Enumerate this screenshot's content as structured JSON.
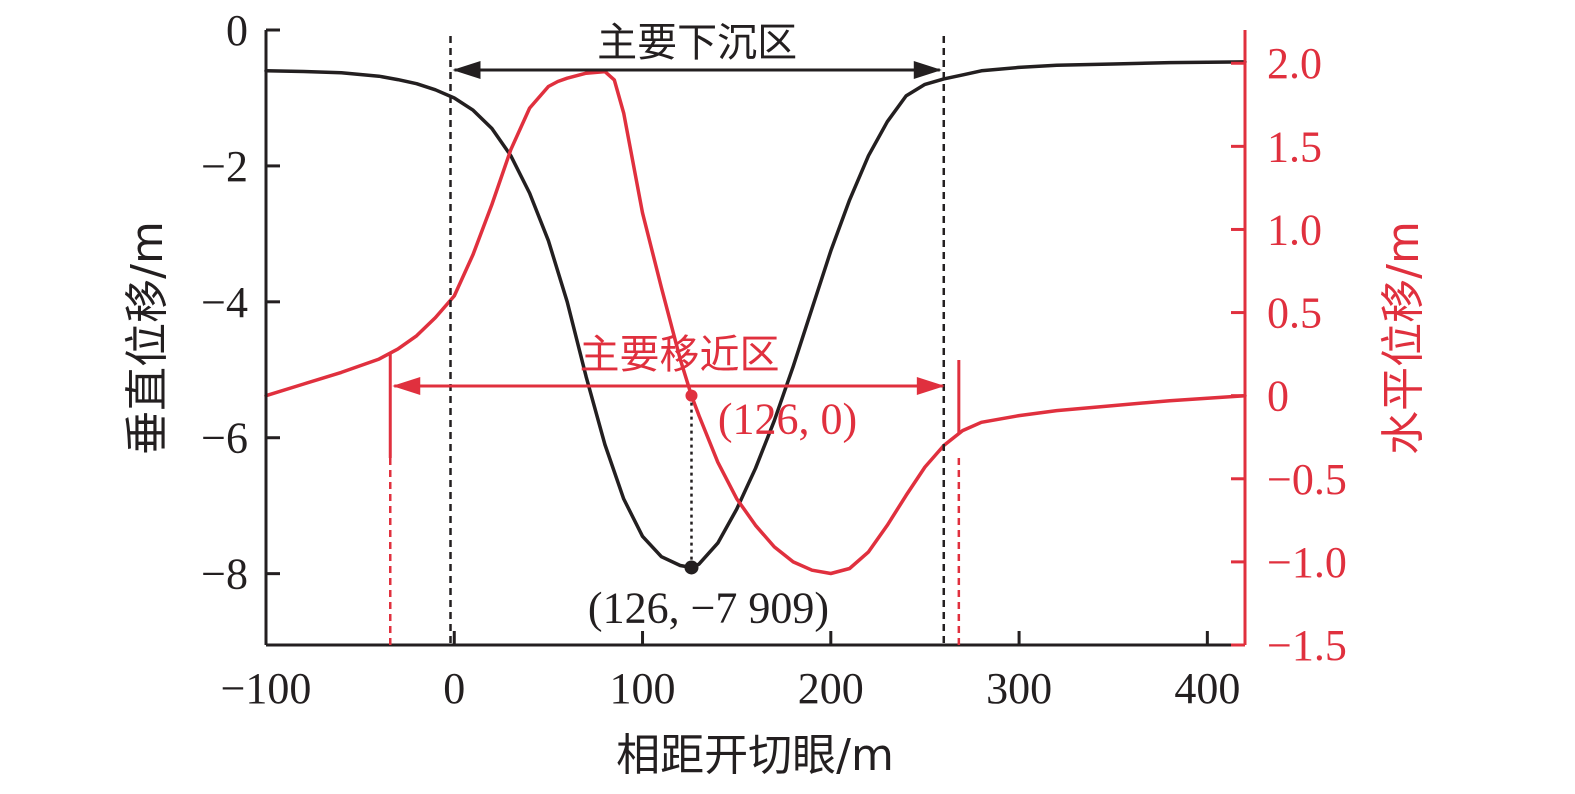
{
  "chart_data": {
    "type": "line",
    "xlabel": "相距开切眼/m",
    "ylabel_left": "垂直位移/m",
    "ylabel_right": "水平位移/m",
    "xlim": [
      -100,
      420
    ],
    "ylim_left": [
      -9.05,
      0
    ],
    "ylim_right": [
      -1.5,
      2.2
    ],
    "x_ticks": [
      -100,
      0,
      100,
      200,
      300,
      400
    ],
    "x_tick_labels": [
      "−100",
      "0",
      "100",
      "200",
      "300",
      "400"
    ],
    "y_left_ticks": [
      0,
      -2,
      -4,
      -6,
      -8
    ],
    "y_left_tick_labels": [
      "0",
      "−2",
      "−4",
      "−6",
      "−8"
    ],
    "y_right_ticks": [
      2.0,
      1.5,
      1.0,
      0.5,
      0,
      -0.5,
      -1.0,
      -1.5
    ],
    "y_right_tick_labels": [
      "2.0",
      "1.5",
      "1.0",
      "0.5",
      "0",
      "−0.5",
      "−1.0",
      "−1.5"
    ],
    "colors": {
      "vertical": "#231f20",
      "horizontal": "#e0303e"
    },
    "series": [
      {
        "axis": "left",
        "color": "#231f20",
        "x": [
          -100,
          -80,
          -60,
          -40,
          -30,
          -20,
          -10,
          0,
          10,
          20,
          30,
          40,
          50,
          60,
          70,
          80,
          90,
          100,
          110,
          120,
          126,
          130,
          140,
          150,
          160,
          170,
          180,
          190,
          200,
          210,
          220,
          230,
          240,
          250,
          260,
          270,
          280,
          300,
          320,
          350,
          380,
          420
        ],
        "y": [
          -0.6,
          -0.61,
          -0.63,
          -0.68,
          -0.73,
          -0.79,
          -0.88,
          -1.0,
          -1.18,
          -1.45,
          -1.85,
          -2.4,
          -3.1,
          -4.0,
          -5.1,
          -6.1,
          -6.9,
          -7.45,
          -7.75,
          -7.88,
          -7.909,
          -7.86,
          -7.55,
          -7.05,
          -6.45,
          -5.75,
          -4.95,
          -4.1,
          -3.25,
          -2.5,
          -1.85,
          -1.35,
          -0.97,
          -0.8,
          -0.72,
          -0.66,
          -0.6,
          -0.55,
          -0.52,
          -0.5,
          -0.48,
          -0.47
        ]
      },
      {
        "axis": "right",
        "color": "#e0303e",
        "x": [
          -100,
          -80,
          -60,
          -40,
          -30,
          -20,
          -10,
          0,
          10,
          20,
          30,
          40,
          50,
          55,
          60,
          70,
          80,
          85,
          90,
          100,
          110,
          120,
          126,
          130,
          140,
          150,
          160,
          170,
          180,
          190,
          200,
          210,
          220,
          230,
          240,
          250,
          260,
          270,
          280,
          300,
          320,
          350,
          380,
          420
        ],
        "y": [
          0.0,
          0.07,
          0.14,
          0.22,
          0.28,
          0.36,
          0.47,
          0.6,
          0.85,
          1.15,
          1.48,
          1.73,
          1.86,
          1.89,
          1.91,
          1.94,
          1.95,
          1.9,
          1.7,
          1.1,
          0.65,
          0.22,
          0.0,
          -0.12,
          -0.4,
          -0.62,
          -0.78,
          -0.91,
          -1.0,
          -1.05,
          -1.07,
          -1.04,
          -0.94,
          -0.78,
          -0.6,
          -0.43,
          -0.3,
          -0.21,
          -0.16,
          -0.12,
          -0.09,
          -0.06,
          -0.03,
          0.0
        ]
      }
    ],
    "annotations": {
      "subsidence_zone": {
        "label": "主要下沉区",
        "x_start": -2,
        "x_end": 260
      },
      "displacement_zone": {
        "label": "主要移近区",
        "x_start": -34,
        "x_end": 268
      },
      "min_point": {
        "label": "(126, −7 909)",
        "x": 126,
        "y": -7.909
      },
      "zero_point": {
        "label": "(126, 0)",
        "x": 126,
        "y": 0
      }
    }
  }
}
